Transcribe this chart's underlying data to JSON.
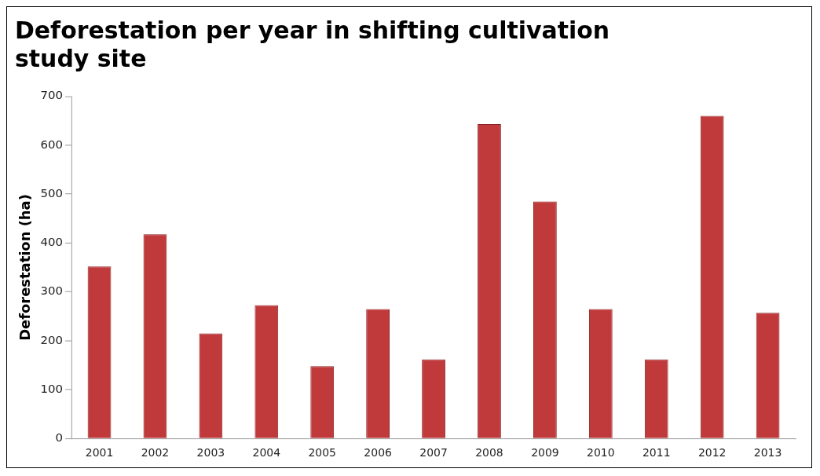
{
  "chart_data": {
    "type": "bar",
    "title": [
      "Deforestation per year in shifting cultivation",
      "study site"
    ],
    "ylabel": "Deforestation (ha)",
    "categories": [
      "2001",
      "2002",
      "2003",
      "2004",
      "2005",
      "2006",
      "2007",
      "2008",
      "2009",
      "2010",
      "2011",
      "2012",
      "2013"
    ],
    "values": [
      352,
      418,
      215,
      273,
      148,
      265,
      162,
      643,
      485,
      265,
      162,
      660,
      257
    ],
    "color": "#c0393b",
    "ylim": [
      0,
      700
    ],
    "yticks": [
      0,
      100,
      200,
      300,
      400,
      500,
      600,
      700
    ],
    "grid": false,
    "legend": false
  }
}
